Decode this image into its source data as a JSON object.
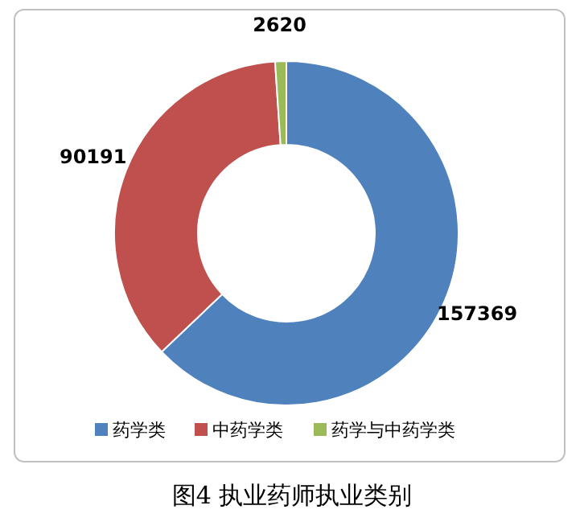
{
  "chart_data": {
    "type": "donut",
    "title": "图4  执业药师执业类别",
    "categories": [
      "药学类",
      "中药学类",
      "药学与中药学类"
    ],
    "values": [
      157369,
      90191,
      2620
    ],
    "colors": [
      "#4f81bd",
      "#c0504d",
      "#9bbb59"
    ],
    "data_labels": true,
    "legend": "bottom"
  }
}
